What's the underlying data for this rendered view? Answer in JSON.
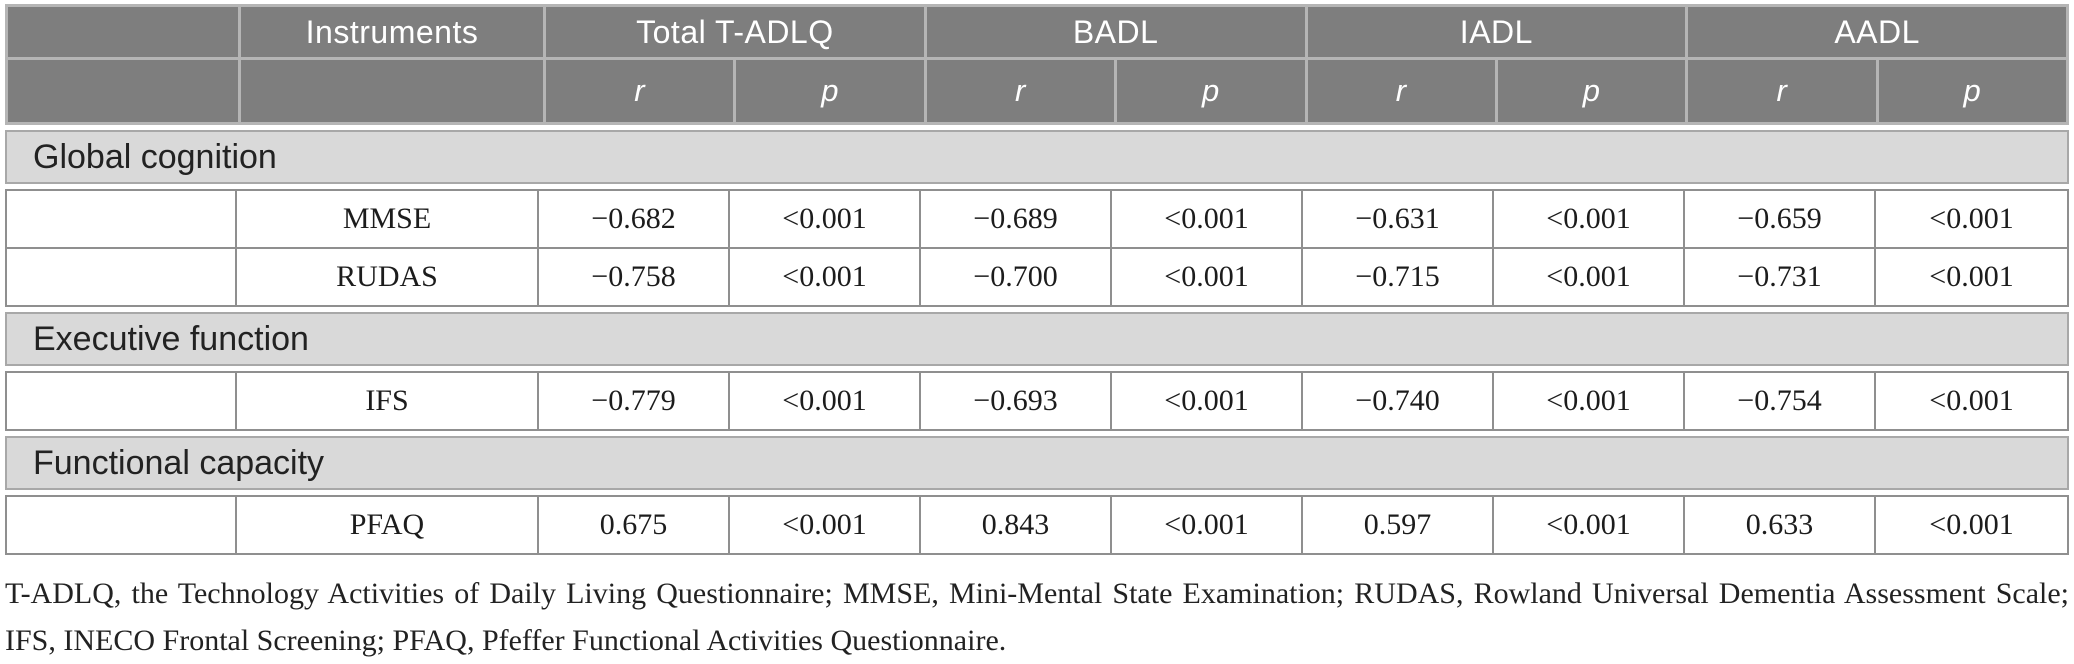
{
  "colors": {
    "header_bg": "#7e7e7e",
    "header_sep": "#b5b5b5",
    "band_bg": "#d9d9d9",
    "band_border": "#a8a8a8",
    "cell_border": "#8f8f8f",
    "header_text": "#ffffff",
    "body_text": "#1c1c1c"
  },
  "table": {
    "header": {
      "instruments_label": "Instruments",
      "groups": [
        {
          "label": "Total T-ADLQ"
        },
        {
          "label": "BADL"
        },
        {
          "label": "IADL"
        },
        {
          "label": "AADL"
        }
      ],
      "stat_labels": {
        "r": "r",
        "p": "p"
      }
    },
    "sections": [
      {
        "label": "Global cognition",
        "rows": [
          {
            "instrument": "MMSE",
            "values": [
              "−0.682",
              "<0.001",
              "−0.689",
              "<0.001",
              "−0.631",
              "<0.001",
              "−0.659",
              "<0.001"
            ]
          },
          {
            "instrument": "RUDAS",
            "values": [
              "−0.758",
              "<0.001",
              "−0.700",
              "<0.001",
              "−0.715",
              "<0.001",
              "−0.731",
              "<0.001"
            ]
          }
        ]
      },
      {
        "label": "Executive function",
        "rows": [
          {
            "instrument": "IFS",
            "values": [
              "−0.779",
              "<0.001",
              "−0.693",
              "<0.001",
              "−0.740",
              "<0.001",
              "−0.754",
              "<0.001"
            ]
          }
        ]
      },
      {
        "label": "Functional capacity",
        "rows": [
          {
            "instrument": "PFAQ",
            "values": [
              "0.675",
              "<0.001",
              "0.843",
              "<0.001",
              "0.597",
              "<0.001",
              "0.633",
              "<0.001"
            ]
          }
        ]
      }
    ]
  },
  "footnote": "T-ADLQ, the Technology Activities of Daily Living Questionnaire; MMSE, Mini-Mental State Examination; RUDAS, Rowland Universal Dementia Assessment Scale; IFS, INECO Frontal Screening; PFAQ, Pfeffer Functional Activities Questionnaire."
}
